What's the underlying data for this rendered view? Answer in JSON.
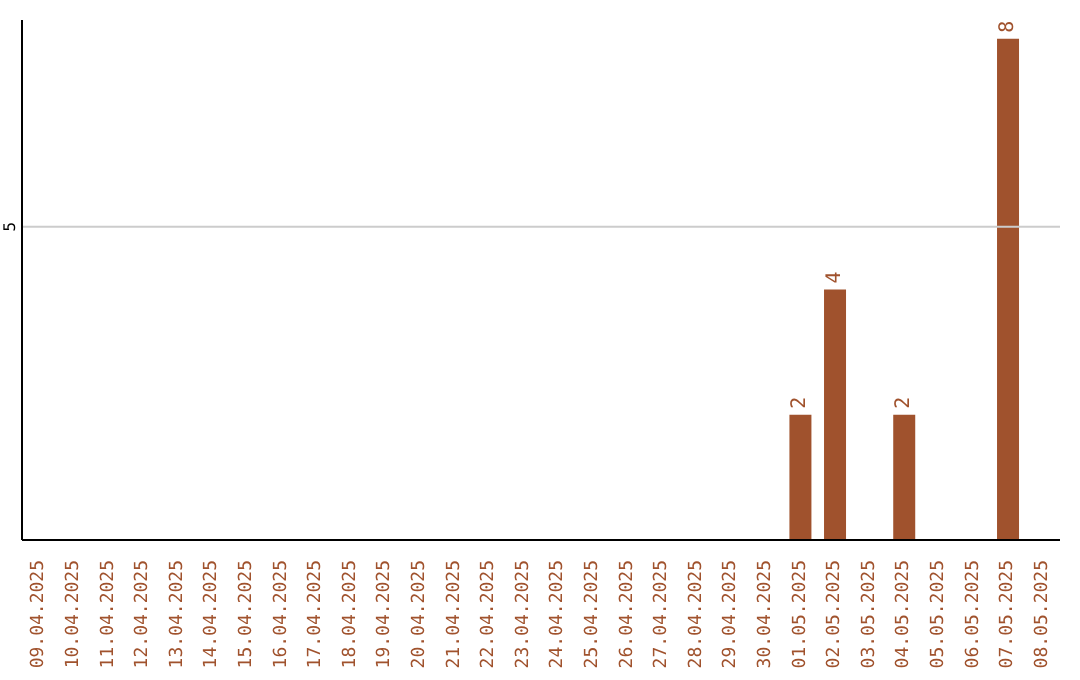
{
  "chart_data": {
    "type": "bar",
    "categories": [
      "09.04.2025",
      "10.04.2025",
      "11.04.2025",
      "12.04.2025",
      "13.04.2025",
      "14.04.2025",
      "15.04.2025",
      "16.04.2025",
      "17.04.2025",
      "18.04.2025",
      "19.04.2025",
      "20.04.2025",
      "21.04.2025",
      "22.04.2025",
      "23.04.2025",
      "24.04.2025",
      "25.04.2025",
      "26.04.2025",
      "27.04.2025",
      "28.04.2025",
      "29.04.2025",
      "30.04.2025",
      "01.05.2025",
      "02.05.2025",
      "03.05.2025",
      "04.05.2025",
      "05.05.2025",
      "06.05.2025",
      "07.05.2025",
      "08.05.2025"
    ],
    "values": [
      null,
      null,
      null,
      null,
      null,
      null,
      null,
      null,
      null,
      null,
      null,
      null,
      null,
      null,
      null,
      null,
      null,
      null,
      null,
      null,
      null,
      null,
      2,
      4,
      null,
      2,
      null,
      null,
      8,
      null
    ],
    "data_labels": true,
    "color": "#a0522d",
    "ylim": [
      0,
      8.3
    ],
    "yticks": [
      5
    ],
    "grid": "y"
  }
}
